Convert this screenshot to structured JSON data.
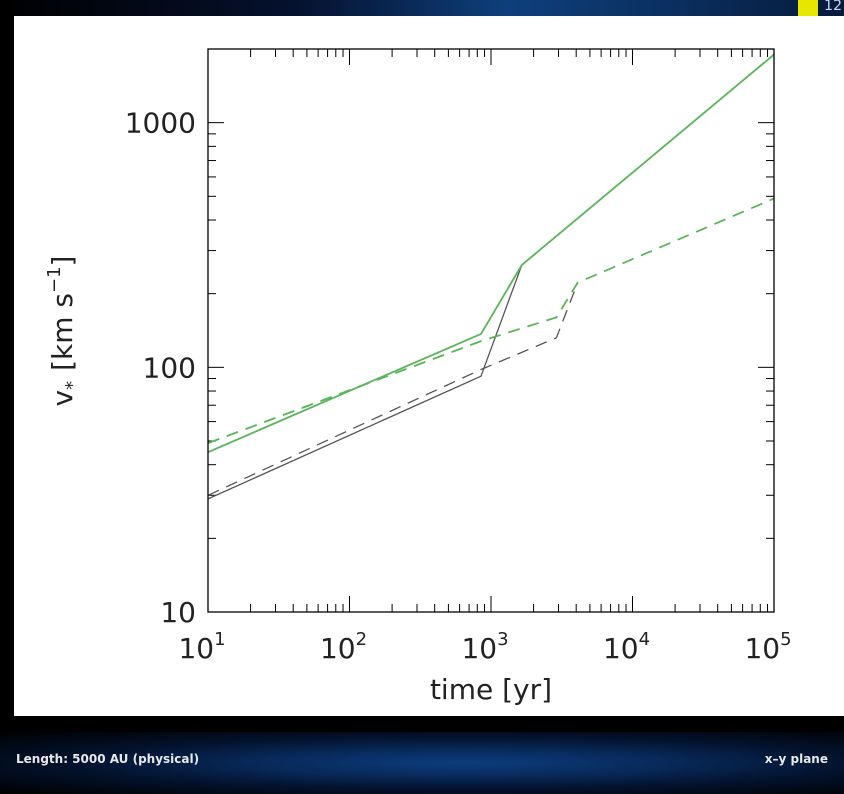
{
  "top_badge_text": "12",
  "footer": {
    "left_text": "Length: 5000 AU (physical)",
    "right_text": "x–y plane"
  },
  "chart_data": {
    "type": "line",
    "title": "",
    "xlabel": "time [yr]",
    "ylabel": "v",
    "ylabel_sub": "*",
    "ylabel_units": "[km s",
    "ylabel_exp": "−1",
    "ylabel_close": "]",
    "x_scale": "log",
    "y_scale": "log",
    "xlim": [
      10,
      100000
    ],
    "ylim": [
      10,
      2000
    ],
    "x_ticks": [
      {
        "value": 10,
        "base": "10",
        "exp": "1"
      },
      {
        "value": 100,
        "base": "10",
        "exp": "2"
      },
      {
        "value": 1000,
        "base": "10",
        "exp": "3"
      },
      {
        "value": 10000,
        "base": "10",
        "exp": "4"
      },
      {
        "value": 100000,
        "base": "10",
        "exp": "5"
      }
    ],
    "y_ticks": [
      {
        "value": 10,
        "label": "10"
      },
      {
        "value": 100,
        "label": "100"
      },
      {
        "value": 1000,
        "label": "1000"
      }
    ],
    "grid": false,
    "series": [
      {
        "color": "#555555",
        "dash": "solid",
        "x": [
          10,
          850,
          1650
        ],
        "y": [
          29,
          92,
          262
        ]
      },
      {
        "color": "#555555",
        "dash": "dashed",
        "x": [
          10,
          850,
          2900,
          4100
        ],
        "y": [
          30,
          98,
          132,
          222
        ]
      },
      {
        "color": "#5ab55a",
        "dash": "solid",
        "x": [
          10,
          850,
          1650,
          100000
        ],
        "y": [
          45,
          137,
          262,
          1900
        ]
      },
      {
        "color": "#5ab55a",
        "dash": "dashed",
        "x": [
          10,
          850,
          2900,
          4100,
          100000
        ],
        "y": [
          49,
          128,
          160,
          222,
          490
        ]
      }
    ]
  }
}
